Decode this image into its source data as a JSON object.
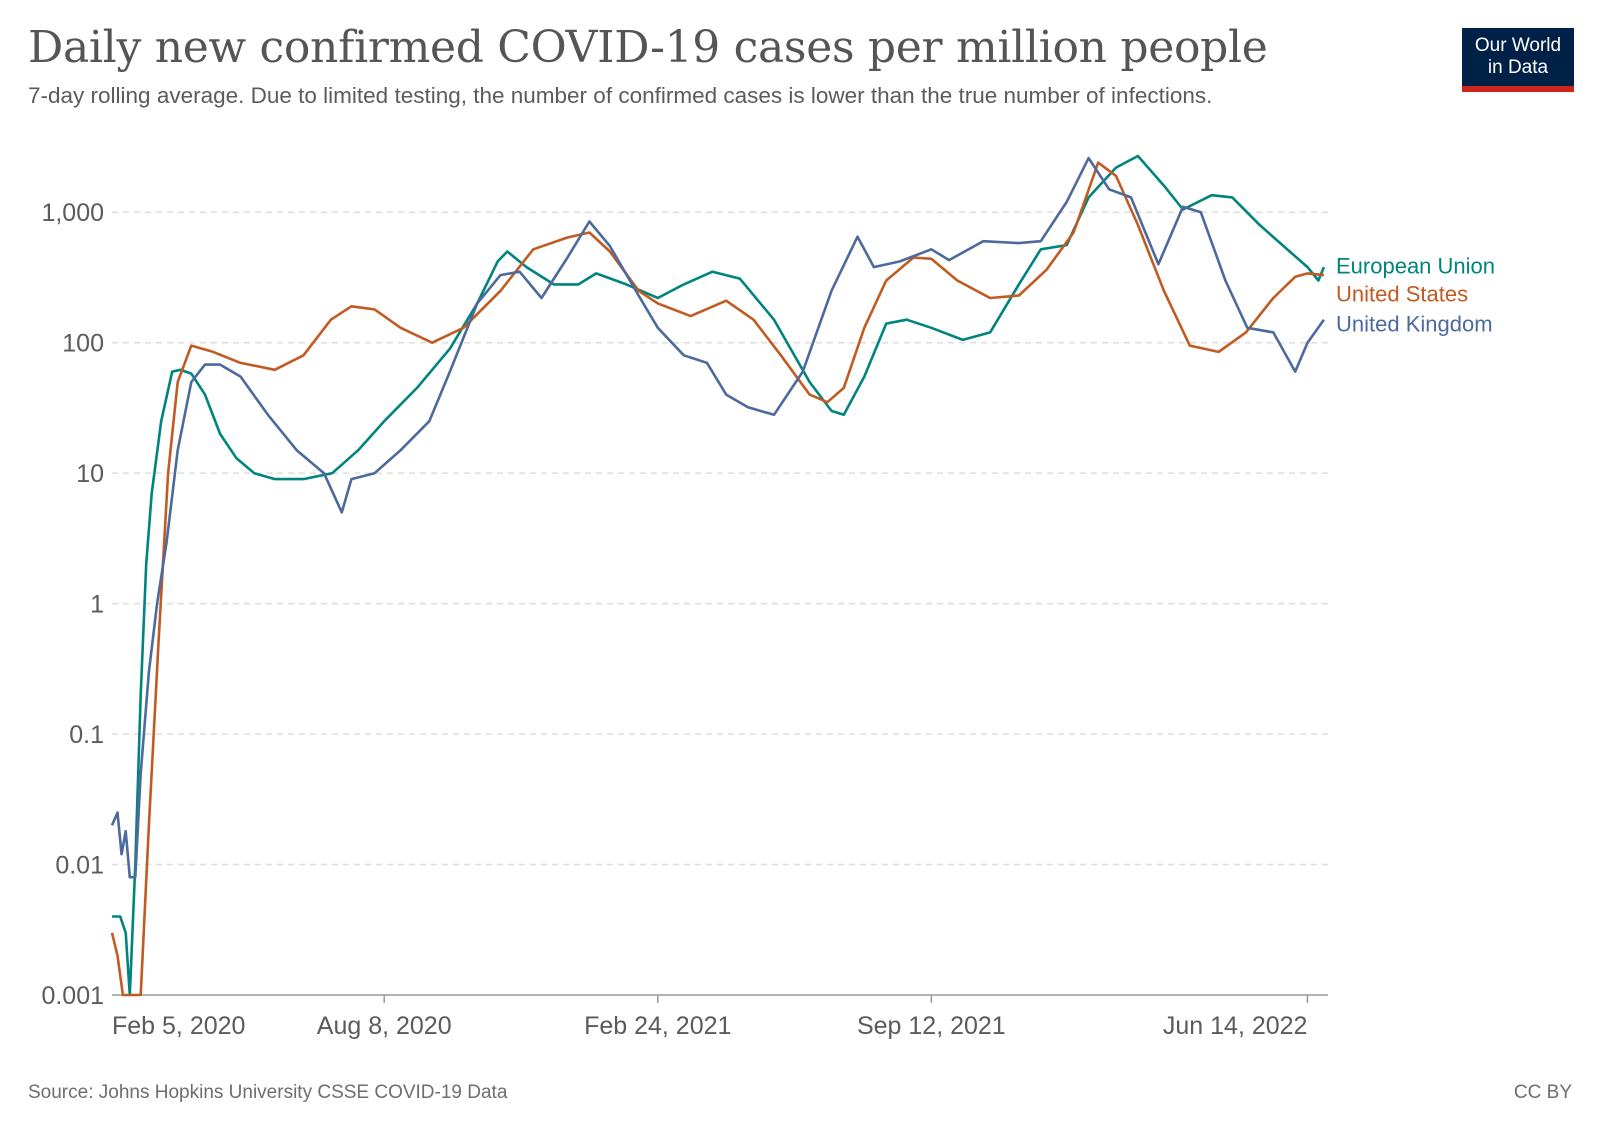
{
  "header": {
    "title": "Daily new confirmed COVID-19 cases per million people",
    "subtitle": "7-day rolling average. Due to limited testing, the number of confirmed cases is lower than the true number of infections.",
    "logo_line1": "Our World",
    "logo_line2": "in Data"
  },
  "footer": {
    "source": "Source: Johns Hopkins University CSSE COVID-19 Data",
    "license": "CC BY"
  },
  "chart_data": {
    "type": "line",
    "title": "Daily new confirmed COVID-19 cases per million people",
    "xlabel": "",
    "ylabel": "",
    "y_scale": "log",
    "ylim": [
      0.001,
      3000
    ],
    "xlim": [
      "2020-01-22",
      "2022-06-29"
    ],
    "y_ticks": [
      {
        "value": 0.001,
        "label": "0.001"
      },
      {
        "value": 0.01,
        "label": "0.01"
      },
      {
        "value": 0.1,
        "label": "0.1"
      },
      {
        "value": 1,
        "label": "1"
      },
      {
        "value": 10,
        "label": "10"
      },
      {
        "value": 100,
        "label": "100"
      },
      {
        "value": 1000,
        "label": "1,000"
      }
    ],
    "x_ticks": [
      {
        "date": "2020-02-05",
        "label": "Feb 5, 2020"
      },
      {
        "date": "2020-08-08",
        "label": "Aug 8, 2020"
      },
      {
        "date": "2021-02-24",
        "label": "Feb 24, 2021"
      },
      {
        "date": "2021-09-12",
        "label": "Sep 12, 2021"
      },
      {
        "date": "2022-06-14",
        "label": "Jun 14, 2022"
      }
    ],
    "grid": "horizontal dashed",
    "legend_position": "right, at line ends",
    "series": [
      {
        "name": "European Union",
        "color": "#00847e",
        "points": [
          [
            "2020-01-22",
            0.004
          ],
          [
            "2020-01-28",
            0.004
          ],
          [
            "2020-02-01",
            0.003
          ],
          [
            "2020-02-04",
            0.001
          ],
          [
            "2020-02-08",
            0.01
          ],
          [
            "2020-02-12",
            0.2
          ],
          [
            "2020-02-16",
            2
          ],
          [
            "2020-02-20",
            7
          ],
          [
            "2020-02-27",
            25
          ],
          [
            "2020-03-06",
            60
          ],
          [
            "2020-03-12",
            62
          ],
          [
            "2020-03-20",
            58
          ],
          [
            "2020-03-30",
            40
          ],
          [
            "2020-04-10",
            20
          ],
          [
            "2020-04-22",
            13
          ],
          [
            "2020-05-05",
            10
          ],
          [
            "2020-05-20",
            9
          ],
          [
            "2020-06-10",
            9
          ],
          [
            "2020-07-01",
            10
          ],
          [
            "2020-07-20",
            15
          ],
          [
            "2020-08-08",
            25
          ],
          [
            "2020-09-01",
            45
          ],
          [
            "2020-09-25",
            90
          ],
          [
            "2020-10-15",
            200
          ],
          [
            "2020-10-30",
            420
          ],
          [
            "2020-11-06",
            500
          ],
          [
            "2020-11-20",
            380
          ],
          [
            "2020-12-10",
            280
          ],
          [
            "2020-12-28",
            280
          ],
          [
            "2021-01-10",
            340
          ],
          [
            "2021-02-01",
            280
          ],
          [
            "2021-02-24",
            220
          ],
          [
            "2021-03-15",
            280
          ],
          [
            "2021-04-05",
            350
          ],
          [
            "2021-04-25",
            310
          ],
          [
            "2021-05-20",
            150
          ],
          [
            "2021-06-15",
            50
          ],
          [
            "2021-07-01",
            30
          ],
          [
            "2021-07-10",
            28
          ],
          [
            "2021-07-25",
            55
          ],
          [
            "2021-08-10",
            140
          ],
          [
            "2021-08-25",
            150
          ],
          [
            "2021-09-12",
            130
          ],
          [
            "2021-10-05",
            105
          ],
          [
            "2021-10-25",
            120
          ],
          [
            "2021-11-15",
            280
          ],
          [
            "2021-12-01",
            520
          ],
          [
            "2021-12-20",
            560
          ],
          [
            "2022-01-05",
            1300
          ],
          [
            "2022-01-25",
            2200
          ],
          [
            "2022-02-10",
            2700
          ],
          [
            "2022-03-01",
            1600
          ],
          [
            "2022-03-15",
            1050
          ],
          [
            "2022-04-05",
            1350
          ],
          [
            "2022-04-20",
            1300
          ],
          [
            "2022-05-10",
            800
          ],
          [
            "2022-06-01",
            500
          ],
          [
            "2022-06-14",
            380
          ],
          [
            "2022-06-22",
            300
          ],
          [
            "2022-06-26",
            380
          ]
        ]
      },
      {
        "name": "United States",
        "color": "#c15b22",
        "points": [
          [
            "2020-01-22",
            0.003
          ],
          [
            "2020-01-26",
            0.002
          ],
          [
            "2020-01-30",
            0.001
          ],
          [
            "2020-02-12",
            0.001
          ],
          [
            "2020-02-18",
            0.02
          ],
          [
            "2020-02-25",
            0.5
          ],
          [
            "2020-03-03",
            10
          ],
          [
            "2020-03-10",
            50
          ],
          [
            "2020-03-20",
            95
          ],
          [
            "2020-04-05",
            85
          ],
          [
            "2020-04-25",
            70
          ],
          [
            "2020-05-20",
            62
          ],
          [
            "2020-06-10",
            80
          ],
          [
            "2020-06-30",
            150
          ],
          [
            "2020-07-15",
            190
          ],
          [
            "2020-08-01",
            180
          ],
          [
            "2020-08-20",
            130
          ],
          [
            "2020-09-12",
            100
          ],
          [
            "2020-10-05",
            130
          ],
          [
            "2020-11-01",
            250
          ],
          [
            "2020-11-25",
            520
          ],
          [
            "2020-12-20",
            640
          ],
          [
            "2021-01-05",
            700
          ],
          [
            "2021-01-20",
            500
          ],
          [
            "2021-02-10",
            250
          ],
          [
            "2021-02-24",
            200
          ],
          [
            "2021-03-20",
            160
          ],
          [
            "2021-04-15",
            210
          ],
          [
            "2021-05-05",
            150
          ],
          [
            "2021-05-25",
            80
          ],
          [
            "2021-06-15",
            40
          ],
          [
            "2021-06-28",
            35
          ],
          [
            "2021-07-10",
            45
          ],
          [
            "2021-07-25",
            130
          ],
          [
            "2021-08-10",
            300
          ],
          [
            "2021-08-30",
            450
          ],
          [
            "2021-09-12",
            440
          ],
          [
            "2021-10-01",
            300
          ],
          [
            "2021-10-25",
            220
          ],
          [
            "2021-11-15",
            230
          ],
          [
            "2021-12-05",
            360
          ],
          [
            "2021-12-25",
            700
          ],
          [
            "2022-01-12",
            2400
          ],
          [
            "2022-01-25",
            1900
          ],
          [
            "2022-02-10",
            800
          ],
          [
            "2022-03-01",
            250
          ],
          [
            "2022-03-20",
            95
          ],
          [
            "2022-04-10",
            85
          ],
          [
            "2022-04-30",
            120
          ],
          [
            "2022-05-20",
            220
          ],
          [
            "2022-06-05",
            320
          ],
          [
            "2022-06-14",
            340
          ],
          [
            "2022-06-26",
            330
          ]
        ]
      },
      {
        "name": "United Kingdom",
        "color": "#4c6a9c",
        "points": [
          [
            "2020-01-22",
            0.02
          ],
          [
            "2020-01-26",
            0.025
          ],
          [
            "2020-01-29",
            0.012
          ],
          [
            "2020-02-01",
            0.018
          ],
          [
            "2020-02-04",
            0.008
          ],
          [
            "2020-02-08",
            0.008
          ],
          [
            "2020-02-12",
            0.05
          ],
          [
            "2020-02-18",
            0.3
          ],
          [
            "2020-02-24",
            1
          ],
          [
            "2020-03-02",
            3
          ],
          [
            "2020-03-10",
            15
          ],
          [
            "2020-03-20",
            50
          ],
          [
            "2020-03-30",
            68
          ],
          [
            "2020-04-10",
            68
          ],
          [
            "2020-04-25",
            55
          ],
          [
            "2020-05-15",
            28
          ],
          [
            "2020-06-05",
            15
          ],
          [
            "2020-06-25",
            10
          ],
          [
            "2020-07-08",
            5
          ],
          [
            "2020-07-15",
            9
          ],
          [
            "2020-08-01",
            10
          ],
          [
            "2020-08-20",
            15
          ],
          [
            "2020-09-10",
            25
          ],
          [
            "2020-09-25",
            60
          ],
          [
            "2020-10-15",
            200
          ],
          [
            "2020-11-01",
            330
          ],
          [
            "2020-11-15",
            350
          ],
          [
            "2020-12-01",
            220
          ],
          [
            "2020-12-20",
            450
          ],
          [
            "2021-01-05",
            850
          ],
          [
            "2021-01-20",
            550
          ],
          [
            "2021-02-10",
            230
          ],
          [
            "2021-02-24",
            130
          ],
          [
            "2021-03-15",
            80
          ],
          [
            "2021-04-01",
            70
          ],
          [
            "2021-04-15",
            40
          ],
          [
            "2021-05-01",
            32
          ],
          [
            "2021-05-20",
            28
          ],
          [
            "2021-06-10",
            60
          ],
          [
            "2021-07-01",
            250
          ],
          [
            "2021-07-20",
            650
          ],
          [
            "2021-08-01",
            380
          ],
          [
            "2021-08-20",
            420
          ],
          [
            "2021-09-12",
            520
          ],
          [
            "2021-09-25",
            430
          ],
          [
            "2021-10-20",
            600
          ],
          [
            "2021-11-15",
            580
          ],
          [
            "2021-12-01",
            600
          ],
          [
            "2021-12-20",
            1200
          ],
          [
            "2022-01-05",
            2600
          ],
          [
            "2022-01-20",
            1500
          ],
          [
            "2022-02-05",
            1300
          ],
          [
            "2022-02-25",
            400
          ],
          [
            "2022-03-15",
            1100
          ],
          [
            "2022-03-28",
            1000
          ],
          [
            "2022-04-15",
            300
          ],
          [
            "2022-05-01",
            130
          ],
          [
            "2022-05-20",
            120
          ],
          [
            "2022-06-05",
            60
          ],
          [
            "2022-06-14",
            100
          ],
          [
            "2022-06-26",
            150
          ]
        ]
      }
    ]
  }
}
